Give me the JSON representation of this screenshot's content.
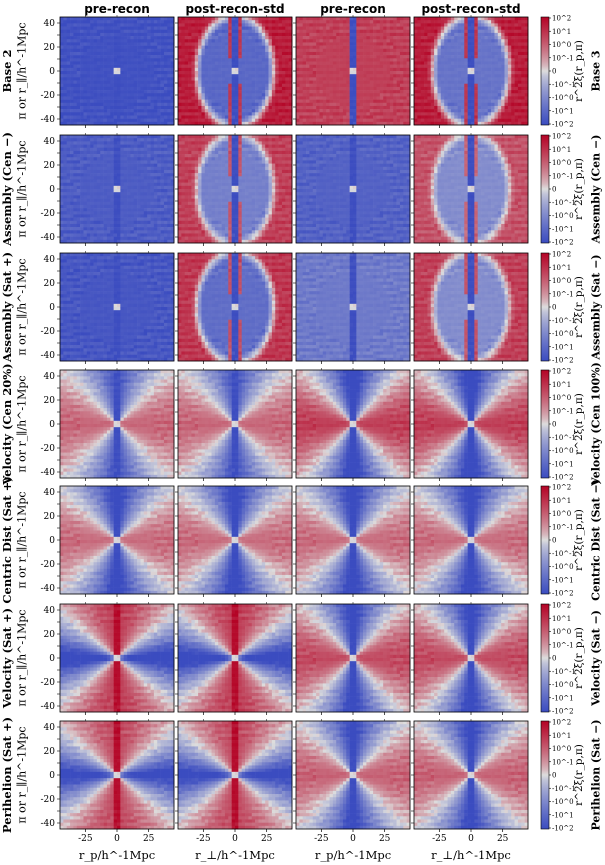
{
  "column_titles": [
    "pre-recon",
    "post-recon-std",
    "pre-recon",
    "post-recon-std"
  ],
  "x_axis_labels": [
    "r_p/h^-1Mpc",
    "r_⊥/h^-1Mpc",
    "r_p/h^-1Mpc",
    "r_⊥/h^-1Mpc"
  ],
  "colors": {
    "negative_max": "#3b4cc0",
    "zero": "#dddddd",
    "positive_max": "#b40426",
    "frame": "#000000"
  },
  "chart_data": {
    "type": "heatmap",
    "grid": {
      "rows": 7,
      "columns": 4
    },
    "x_ticks": [
      -25,
      0,
      25
    ],
    "y_ticks": [
      40,
      30,
      20,
      10,
      0,
      -10,
      -20,
      -30,
      -40
    ],
    "xlim": [
      -45,
      45
    ],
    "ylim": [
      -45,
      45
    ],
    "colorbar": {
      "label": "r^2ξ(r_p,π)",
      "scale": "symlog",
      "ticks": [
        "10^2",
        "10^1",
        "10^0",
        "10^-1",
        "0",
        "-10^-1",
        "-10^0",
        "-10^1",
        "-10^2"
      ],
      "range": [
        -100,
        100
      ]
    },
    "rows": [
      {
        "left_label": "Base 2",
        "y_label": "π or r_∥/h^-1Mpc",
        "right_label": "Base 3",
        "panels": [
          {
            "column": "pre-recon",
            "level": -0.95,
            "pattern": "flat",
            "amp": 0.0
          },
          {
            "column": "post-recon-std",
            "level": -0.75,
            "pattern": "lens",
            "amp": 1.6
          },
          {
            "column": "pre-recon",
            "level": 0.65,
            "pattern": "flat",
            "amp": 0.0
          },
          {
            "column": "post-recon-std",
            "level": -0.65,
            "pattern": "lens",
            "amp": 1.5
          }
        ]
      },
      {
        "left_label": "Assembly (Cen −)",
        "y_label": "π or r_∥/h^-1Mpc",
        "right_label": "Assembly (Cen −)",
        "panels": [
          {
            "column": "pre-recon",
            "level": -0.85,
            "pattern": "flat",
            "amp": 0.0
          },
          {
            "column": "post-recon-std",
            "level": -0.55,
            "pattern": "lens",
            "amp": 1.2
          },
          {
            "column": "pre-recon",
            "level": -0.8,
            "pattern": "flat",
            "amp": 0.0
          },
          {
            "column": "post-recon-std",
            "level": -0.45,
            "pattern": "lens",
            "amp": 1.0
          }
        ]
      },
      {
        "left_label": "Assembly (Sat +)",
        "y_label": "π or r_∥/h^-1Mpc",
        "right_label": "Assembly (Sat −)",
        "panels": [
          {
            "column": "pre-recon",
            "level": -0.9,
            "pattern": "flat",
            "amp": 0.0
          },
          {
            "column": "post-recon-std",
            "level": -0.7,
            "pattern": "lens",
            "amp": 1.4
          },
          {
            "column": "pre-recon",
            "level": -0.6,
            "pattern": "flat",
            "amp": 0.0
          },
          {
            "column": "post-recon-std",
            "level": -0.45,
            "pattern": "lens",
            "amp": 1.1
          }
        ]
      },
      {
        "left_label": "Velocity (Cen 20%)",
        "y_label": "π or r_∥/h^-1Mpc",
        "right_label": "Velocity (Cen 100%)",
        "panels": [
          {
            "column": "pre-recon",
            "level": -0.2,
            "pattern": "bowtie-horizontal",
            "amp": 0.9
          },
          {
            "column": "post-recon-std",
            "level": -0.2,
            "pattern": "bowtie-horizontal",
            "amp": 0.9
          },
          {
            "column": "pre-recon",
            "level": -0.2,
            "pattern": "bowtie-horizontal",
            "amp": 1.2
          },
          {
            "column": "post-recon-std",
            "level": -0.2,
            "pattern": "bowtie-horizontal",
            "amp": 1.2
          }
        ]
      },
      {
        "left_label": "Centric Dist (Sat +)",
        "y_label": "π or r_∥/h^-1Mpc",
        "right_label": "Centric Dist (Sat −)",
        "panels": [
          {
            "column": "pre-recon",
            "level": -0.3,
            "pattern": "bowtie-horizontal",
            "amp": 1.0
          },
          {
            "column": "post-recon-std",
            "level": -0.3,
            "pattern": "bowtie-horizontal",
            "amp": 1.0
          },
          {
            "column": "pre-recon",
            "level": -0.3,
            "pattern": "bowtie-horizontal",
            "amp": 1.0
          },
          {
            "column": "post-recon-std",
            "level": -0.3,
            "pattern": "bowtie-horizontal",
            "amp": 1.0
          }
        ]
      },
      {
        "left_label": "Velocity (Sat +)",
        "y_label": "π or r_∥/h^-1Mpc",
        "right_label": "Velocity (Sat −)",
        "panels": [
          {
            "column": "pre-recon",
            "level": -0.2,
            "pattern": "bowtie-vertical",
            "amp": 1.2
          },
          {
            "column": "post-recon-std",
            "level": -0.2,
            "pattern": "bowtie-vertical",
            "amp": 1.2
          },
          {
            "column": "pre-recon",
            "level": -0.2,
            "pattern": "bowtie-horizontal",
            "amp": 1.1
          },
          {
            "column": "post-recon-std",
            "level": -0.2,
            "pattern": "bowtie-horizontal",
            "amp": 1.1
          }
        ]
      },
      {
        "left_label": "Perihelion (Sat +)",
        "y_label": "π or r_∥/h^-1Mpc",
        "right_label": "Perihelion (Sat −)",
        "panels": [
          {
            "column": "pre-recon",
            "level": -0.2,
            "pattern": "bowtie-vertical",
            "amp": 1.1
          },
          {
            "column": "post-recon-std",
            "level": -0.2,
            "pattern": "bowtie-vertical",
            "amp": 1.1
          },
          {
            "column": "pre-recon",
            "level": -0.25,
            "pattern": "bowtie-horizontal",
            "amp": 1.0
          },
          {
            "column": "post-recon-std",
            "level": -0.25,
            "pattern": "bowtie-horizontal",
            "amp": 1.0
          }
        ]
      }
    ]
  }
}
